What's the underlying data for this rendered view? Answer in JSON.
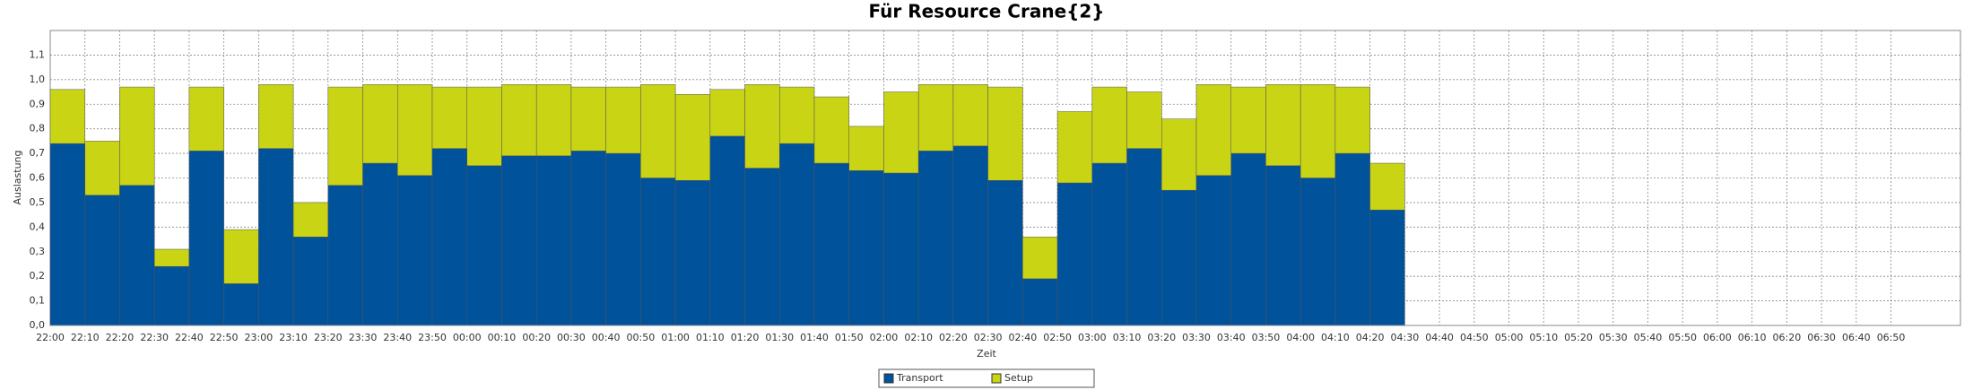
{
  "chart_data": {
    "type": "stacked_bar",
    "title": "Für Resource Crane{2}",
    "x_label": "Zeit",
    "y_label": "Auslastung",
    "categories": [
      "22:00",
      "22:10",
      "22:20",
      "22:30",
      "22:40",
      "22:50",
      "23:00",
      "23:10",
      "23:20",
      "23:30",
      "23:40",
      "23:50",
      "00:00",
      "00:10",
      "00:20",
      "00:30",
      "00:40",
      "00:50",
      "01:00",
      "01:10",
      "01:20",
      "01:30",
      "01:40",
      "01:50",
      "02:00",
      "02:10",
      "02:20",
      "02:30",
      "02:40",
      "02:50",
      "03:00",
      "03:10",
      "03:20",
      "03:30",
      "03:40",
      "03:50",
      "04:00",
      "04:10",
      "04:20",
      "04:30",
      "04:40",
      "04:50",
      "05:00",
      "05:10",
      "05:20",
      "05:30",
      "05:40",
      "05:50",
      "06:00",
      "06:10",
      "06:20",
      "06:30",
      "06:40",
      "06:50"
    ],
    "series": [
      {
        "name": "Transport",
        "color": "#00529b",
        "values": [
          0.74,
          0.53,
          0.57,
          0.24,
          0.71,
          0.17,
          0.72,
          0.36,
          0.57,
          0.66,
          0.61,
          0.72,
          0.65,
          0.69,
          0.69,
          0.71,
          0.7,
          0.6,
          0.59,
          0.77,
          0.64,
          0.74,
          0.66,
          0.63,
          0.62,
          0.71,
          0.73,
          0.59,
          0.19,
          0.58,
          0.66,
          0.72,
          0.55,
          0.61,
          0.7,
          0.65,
          0.6,
          0.7,
          0.47,
          null,
          null,
          null,
          null,
          null,
          null,
          null,
          null,
          null,
          null,
          null,
          null,
          null,
          null,
          null
        ]
      },
      {
        "name": "Setup",
        "color": "#c8d414",
        "values": [
          0.22,
          0.22,
          0.4,
          0.07,
          0.26,
          0.22,
          0.26,
          0.14,
          0.4,
          0.32,
          0.37,
          0.25,
          0.32,
          0.29,
          0.29,
          0.26,
          0.27,
          0.38,
          0.35,
          0.19,
          0.34,
          0.23,
          0.27,
          0.18,
          0.33,
          0.27,
          0.25,
          0.38,
          0.17,
          0.29,
          0.31,
          0.23,
          0.29,
          0.37,
          0.27,
          0.33,
          0.38,
          0.27,
          0.19,
          null,
          null,
          null,
          null,
          null,
          null,
          null,
          null,
          null,
          null,
          null,
          null,
          null,
          null,
          null
        ]
      }
    ],
    "ylim": [
      0,
      1.2
    ],
    "yticks": [
      {
        "value": 0,
        "label": "0,0"
      },
      {
        "value": 0.1,
        "label": "0,1"
      },
      {
        "value": 0.2,
        "label": "0,2"
      },
      {
        "value": 0.3,
        "label": "0,3"
      },
      {
        "value": 0.4,
        "label": "0,4"
      },
      {
        "value": 0.5,
        "label": "0,5"
      },
      {
        "value": 0.6,
        "label": "0,6"
      },
      {
        "value": 0.7,
        "label": "0,7"
      },
      {
        "value": 0.8,
        "label": "0,8"
      },
      {
        "value": 0.9,
        "label": "0,9"
      },
      {
        "value": 1.0,
        "label": "1,0"
      },
      {
        "value": 1.1,
        "label": "1,1"
      }
    ],
    "grid": true,
    "legend": "bottom"
  }
}
